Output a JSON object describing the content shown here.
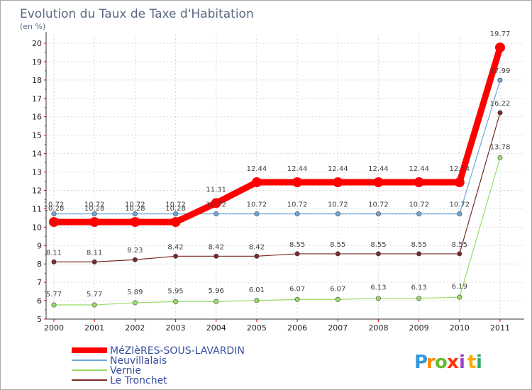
{
  "chart_data": {
    "type": "line",
    "title": "Evolution du Taux de Taxe d'Habitation",
    "subtitle": "(en %)",
    "xlabel": "",
    "ylabel": "",
    "ylim": [
      5,
      20
    ],
    "yticks": [
      "5",
      "6",
      "7",
      "8",
      "9",
      "10",
      "11",
      "12",
      "13",
      "14",
      "15",
      "16",
      "17",
      "18",
      "19",
      "20"
    ],
    "categories": [
      "2000",
      "2001",
      "2002",
      "2003",
      "2004",
      "2005",
      "2006",
      "2007",
      "2008",
      "2009",
      "2010",
      "2011"
    ],
    "series": [
      {
        "name": "MéZIèRES-SOUS-LAVARDIN",
        "color": "#ff0000",
        "values": [
          10.28,
          10.28,
          10.28,
          10.28,
          11.31,
          12.44,
          12.44,
          12.44,
          12.44,
          12.44,
          12.44,
          19.77
        ],
        "labels": [
          "10.28",
          "10.28",
          "10.28",
          "10.28",
          "11.31",
          "12.44",
          "12.44",
          "12.44",
          "12.44",
          "12.44",
          "12.44",
          "19.77"
        ]
      },
      {
        "name": "Neuvillalais",
        "color": "#6fa8d8",
        "values": [
          10.72,
          10.72,
          10.72,
          10.72,
          10.72,
          10.72,
          10.72,
          10.72,
          10.72,
          10.72,
          10.72,
          17.99
        ],
        "labels": [
          "10.72",
          "10.72",
          "10.72",
          "10.72",
          "10.72",
          "10.72",
          "10.72",
          "10.72",
          "10.72",
          "10.72",
          "10.72",
          "17.99"
        ]
      },
      {
        "name": "Vernie",
        "color": "#99dd66",
        "values": [
          5.77,
          5.77,
          5.89,
          5.95,
          5.96,
          6.01,
          6.07,
          6.07,
          6.13,
          6.13,
          6.19,
          13.78
        ],
        "labels": [
          "5.77",
          "5.77",
          "5.89",
          "5.95",
          "5.96",
          "6.01",
          "6.07",
          "6.07",
          "6.13",
          "6.13",
          "6.19",
          "13.78"
        ]
      },
      {
        "name": "Le Tronchet",
        "color": "#7a2a2a",
        "values": [
          8.11,
          8.11,
          8.23,
          8.42,
          8.42,
          8.42,
          8.55,
          8.55,
          8.55,
          8.55,
          8.55,
          16.22
        ],
        "labels": [
          "8.11",
          "8.11",
          "8.23",
          "8.42",
          "8.42",
          "8.42",
          "8.55",
          "8.55",
          "8.55",
          "8.55",
          "8.55",
          "16.22"
        ]
      }
    ],
    "legend_position": "bottom-left",
    "grid": true
  },
  "logo": {
    "letters": [
      "P",
      "r",
      "o",
      "x",
      "i",
      "t",
      "i"
    ],
    "colors": [
      "#3399dd",
      "#ff8800",
      "#66bb33",
      "#ff3300",
      "#9944cc",
      "#ffaa00",
      "#33aa66"
    ]
  }
}
